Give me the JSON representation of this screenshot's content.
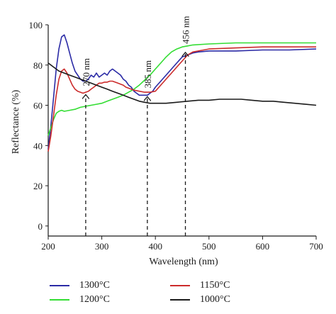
{
  "chart_data": {
    "type": "line",
    "xlabel": "Wavelength (nm)",
    "ylabel": "Reflectance (%)",
    "xlim": [
      200,
      700
    ],
    "ylim": [
      -5,
      100
    ],
    "xticks": [
      200,
      300,
      400,
      500,
      600,
      700
    ],
    "yticks": [
      0,
      20,
      40,
      60,
      80,
      100
    ],
    "grid": false,
    "legend_position": "bottom",
    "series": [
      {
        "name": "1300°C",
        "color": "#2b2ba6",
        "points": [
          [
            200,
            38
          ],
          [
            205,
            50
          ],
          [
            210,
            64
          ],
          [
            215,
            78
          ],
          [
            220,
            88
          ],
          [
            225,
            94
          ],
          [
            230,
            95
          ],
          [
            235,
            91
          ],
          [
            240,
            86
          ],
          [
            245,
            81
          ],
          [
            250,
            77
          ],
          [
            255,
            75
          ],
          [
            260,
            73
          ],
          [
            265,
            72
          ],
          [
            270,
            72
          ],
          [
            275,
            73
          ],
          [
            280,
            75
          ],
          [
            285,
            74
          ],
          [
            290,
            76
          ],
          [
            295,
            74
          ],
          [
            300,
            75
          ],
          [
            305,
            76
          ],
          [
            310,
            75
          ],
          [
            315,
            77
          ],
          [
            320,
            78
          ],
          [
            325,
            77
          ],
          [
            330,
            76
          ],
          [
            335,
            75
          ],
          [
            340,
            73
          ],
          [
            345,
            72
          ],
          [
            350,
            70
          ],
          [
            355,
            69
          ],
          [
            360,
            67
          ],
          [
            365,
            66
          ],
          [
            370,
            65
          ],
          [
            375,
            65
          ],
          [
            380,
            65
          ],
          [
            385,
            65
          ],
          [
            390,
            66
          ],
          [
            395,
            67
          ],
          [
            400,
            69
          ],
          [
            410,
            72
          ],
          [
            420,
            75
          ],
          [
            430,
            78
          ],
          [
            440,
            81
          ],
          [
            450,
            84
          ],
          [
            460,
            85
          ],
          [
            470,
            86
          ],
          [
            480,
            86.5
          ],
          [
            500,
            87
          ],
          [
            550,
            87
          ],
          [
            600,
            87.5
          ],
          [
            650,
            87.5
          ],
          [
            700,
            88
          ]
        ]
      },
      {
        "name": "1200°C",
        "color": "#33dd33",
        "points": [
          [
            200,
            45
          ],
          [
            205,
            49
          ],
          [
            210,
            53
          ],
          [
            215,
            56
          ],
          [
            220,
            57
          ],
          [
            225,
            57.5
          ],
          [
            230,
            57
          ],
          [
            240,
            57.5
          ],
          [
            250,
            58
          ],
          [
            260,
            59
          ],
          [
            270,
            59.5
          ],
          [
            280,
            60
          ],
          [
            290,
            60.5
          ],
          [
            300,
            61
          ],
          [
            310,
            62
          ],
          [
            320,
            63
          ],
          [
            330,
            64
          ],
          [
            340,
            65
          ],
          [
            350,
            66.5
          ],
          [
            360,
            68
          ],
          [
            370,
            70
          ],
          [
            380,
            72.5
          ],
          [
            390,
            75
          ],
          [
            400,
            78
          ],
          [
            410,
            81
          ],
          [
            420,
            84
          ],
          [
            430,
            86.5
          ],
          [
            440,
            88
          ],
          [
            450,
            89
          ],
          [
            460,
            89.5
          ],
          [
            470,
            90
          ],
          [
            500,
            90.5
          ],
          [
            550,
            91
          ],
          [
            600,
            91
          ],
          [
            650,
            91
          ],
          [
            700,
            91
          ]
        ]
      },
      {
        "name": "1150°C",
        "color": "#cc2b2b",
        "points": [
          [
            200,
            37
          ],
          [
            205,
            45
          ],
          [
            210,
            55
          ],
          [
            215,
            65
          ],
          [
            220,
            73
          ],
          [
            225,
            77
          ],
          [
            230,
            78
          ],
          [
            235,
            76
          ],
          [
            240,
            73
          ],
          [
            245,
            70
          ],
          [
            250,
            68
          ],
          [
            255,
            67
          ],
          [
            260,
            66.5
          ],
          [
            265,
            66
          ],
          [
            270,
            66.5
          ],
          [
            275,
            67
          ],
          [
            280,
            68
          ],
          [
            285,
            69
          ],
          [
            290,
            70
          ],
          [
            295,
            71
          ],
          [
            300,
            71
          ],
          [
            305,
            71.5
          ],
          [
            310,
            71.5
          ],
          [
            315,
            72
          ],
          [
            320,
            72
          ],
          [
            325,
            71.5
          ],
          [
            330,
            71
          ],
          [
            335,
            70.5
          ],
          [
            340,
            70
          ],
          [
            345,
            69
          ],
          [
            350,
            68.5
          ],
          [
            360,
            67.5
          ],
          [
            370,
            67
          ],
          [
            380,
            66.5
          ],
          [
            390,
            66.5
          ],
          [
            400,
            67
          ],
          [
            410,
            70
          ],
          [
            420,
            73
          ],
          [
            430,
            76
          ],
          [
            440,
            79
          ],
          [
            450,
            82
          ],
          [
            460,
            85
          ],
          [
            470,
            86.5
          ],
          [
            480,
            87
          ],
          [
            500,
            88
          ],
          [
            550,
            88.5
          ],
          [
            600,
            89
          ],
          [
            650,
            89
          ],
          [
            700,
            89
          ]
        ]
      },
      {
        "name": "1000°C",
        "color": "#1a1a1a",
        "points": [
          [
            200,
            81
          ],
          [
            210,
            79
          ],
          [
            220,
            77
          ],
          [
            230,
            76
          ],
          [
            240,
            75
          ],
          [
            250,
            74
          ],
          [
            260,
            73
          ],
          [
            270,
            72
          ],
          [
            280,
            71
          ],
          [
            290,
            70
          ],
          [
            300,
            69
          ],
          [
            310,
            68
          ],
          [
            320,
            67
          ],
          [
            330,
            66
          ],
          [
            340,
            65
          ],
          [
            350,
            64
          ],
          [
            360,
            63
          ],
          [
            370,
            62
          ],
          [
            380,
            61.5
          ],
          [
            390,
            61
          ],
          [
            400,
            61
          ],
          [
            420,
            61
          ],
          [
            440,
            61.5
          ],
          [
            460,
            62
          ],
          [
            480,
            62.5
          ],
          [
            500,
            62.5
          ],
          [
            520,
            63
          ],
          [
            540,
            63
          ],
          [
            560,
            63
          ],
          [
            580,
            62.5
          ],
          [
            600,
            62
          ],
          [
            620,
            62
          ],
          [
            640,
            61.5
          ],
          [
            660,
            61
          ],
          [
            680,
            60.5
          ],
          [
            700,
            60
          ]
        ]
      }
    ],
    "annotations": [
      {
        "label": "270 nm",
        "x": 270,
        "y": 66
      },
      {
        "label": "385 nm",
        "x": 385,
        "y": 65
      },
      {
        "label": "456 nm",
        "x": 456,
        "y": 87
      }
    ]
  }
}
